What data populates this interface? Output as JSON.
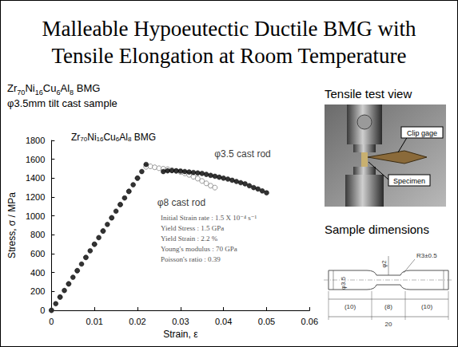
{
  "title": [
    "Malleable Hypoeutectic Ductile BMG with",
    "Tensile Elongation at Room Temperature"
  ],
  "sample": [
    "Zr70Ni16Cu6Al8 BMG",
    "φ3.5mm tilt cast sample"
  ],
  "photo": {
    "title": "Tensile test view",
    "labels": [
      "Clip gage",
      "Specimen"
    ]
  },
  "drawing": {
    "title": "Sample dimensions",
    "dimensions": {
      "grip_diameter": "φ3.5",
      "gauge_diameter": "φ2",
      "radius": "R3±0.5",
      "grip_left": "(10)",
      "gauge": "(8)",
      "grip_right": "(10)",
      "total": "20"
    }
  },
  "chart_data": {
    "type": "scatter",
    "title": "Zr70Ni16Cu6Al8 BMG",
    "x_label": "Strain, ε",
    "y_label": "Stress, σ / MPa",
    "xlim": [
      0,
      0.06
    ],
    "xticks": [
      0,
      0.01,
      0.02,
      0.03,
      0.04,
      0.05,
      0.06
    ],
    "ylim": [
      0,
      1800
    ],
    "yticks": [
      0,
      200,
      400,
      600,
      800,
      1000,
      1200,
      1400,
      1600,
      1800
    ],
    "grid": false,
    "annotations": [
      "Initial Strain rate : 1.5 X 10⁻⁴ s⁻¹",
      "Yield Stress : 1.5 GPa",
      "Yield Strain : 2.2 %",
      "Young's modulus : 70 GPa",
      "Poisson's ratio : 0.39"
    ],
    "series": [
      {
        "name": "φ3.5 cast rod",
        "color": "#000000",
        "marker": "circle",
        "x": [
          0,
          0.001,
          0.002,
          0.003,
          0.004,
          0.005,
          0.006,
          0.007,
          0.008,
          0.009,
          0.01,
          0.011,
          0.012,
          0.013,
          0.014,
          0.015,
          0.016,
          0.017,
          0.018,
          0.019,
          0.02,
          0.021,
          0.022,
          0.026,
          0.027,
          0.028,
          0.029,
          0.03,
          0.031,
          0.032,
          0.033,
          0.034,
          0.035,
          0.036,
          0.037,
          0.038,
          0.039,
          0.04,
          0.041,
          0.042,
          0.043,
          0.044,
          0.045,
          0.046,
          0.047,
          0.048,
          0.049,
          0.05
        ],
        "values": [
          0,
          70,
          140,
          210,
          280,
          350,
          420,
          490,
          560,
          630,
          700,
          770,
          840,
          910,
          980,
          1050,
          1120,
          1190,
          1260,
          1330,
          1400,
          1470,
          1545,
          1470,
          1478,
          1480,
          1478,
          1475,
          1470,
          1465,
          1460,
          1455,
          1450,
          1440,
          1430,
          1420,
          1410,
          1400,
          1390,
          1378,
          1365,
          1352,
          1340,
          1320,
          1300,
          1285,
          1265,
          1245
        ]
      },
      {
        "name": "φ8 cast rod",
        "color": "#808080",
        "marker": "open_circle",
        "x": [
          0,
          0.002,
          0.004,
          0.006,
          0.008,
          0.01,
          0.012,
          0.014,
          0.016,
          0.018,
          0.02,
          0.022,
          0.023,
          0.024,
          0.025,
          0.026,
          0.027,
          0.028,
          0.029,
          0.03,
          0.031,
          0.032,
          0.033,
          0.034,
          0.035,
          0.036,
          0.037,
          0.038
        ],
        "values": [
          0,
          140,
          280,
          420,
          560,
          700,
          840,
          980,
          1120,
          1260,
          1400,
          1520,
          1525,
          1515,
          1505,
          1500,
          1495,
          1485,
          1475,
          1465,
          1450,
          1435,
          1415,
          1395,
          1370,
          1345,
          1320,
          1300
        ]
      }
    ]
  }
}
